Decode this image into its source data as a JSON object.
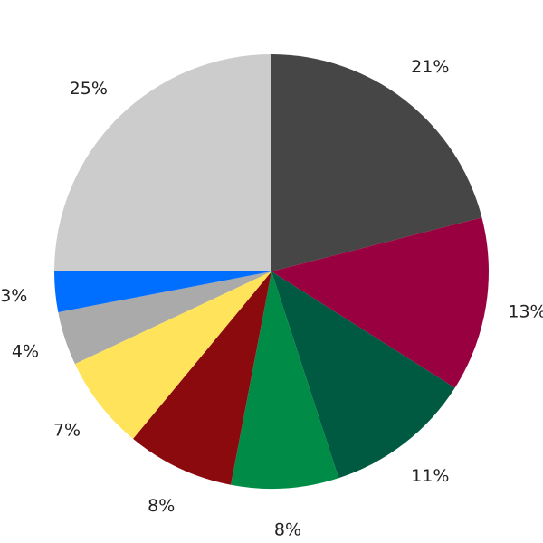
{
  "chart_data": {
    "type": "pie",
    "start": "top",
    "direction": "clockwise",
    "values": [
      21,
      13,
      11,
      8,
      8,
      7,
      4,
      3,
      25
    ],
    "labels": [
      "21%",
      "13%",
      "11%",
      "8%",
      "8%",
      "7%",
      "4%",
      "3%",
      "25%"
    ],
    "colors": [
      "#464646",
      "#990040",
      "#005a41",
      "#008c46",
      "#8b0a0e",
      "#ffe45b",
      "#aaaaaa",
      "#006eff",
      "#cccccc"
    ]
  }
}
